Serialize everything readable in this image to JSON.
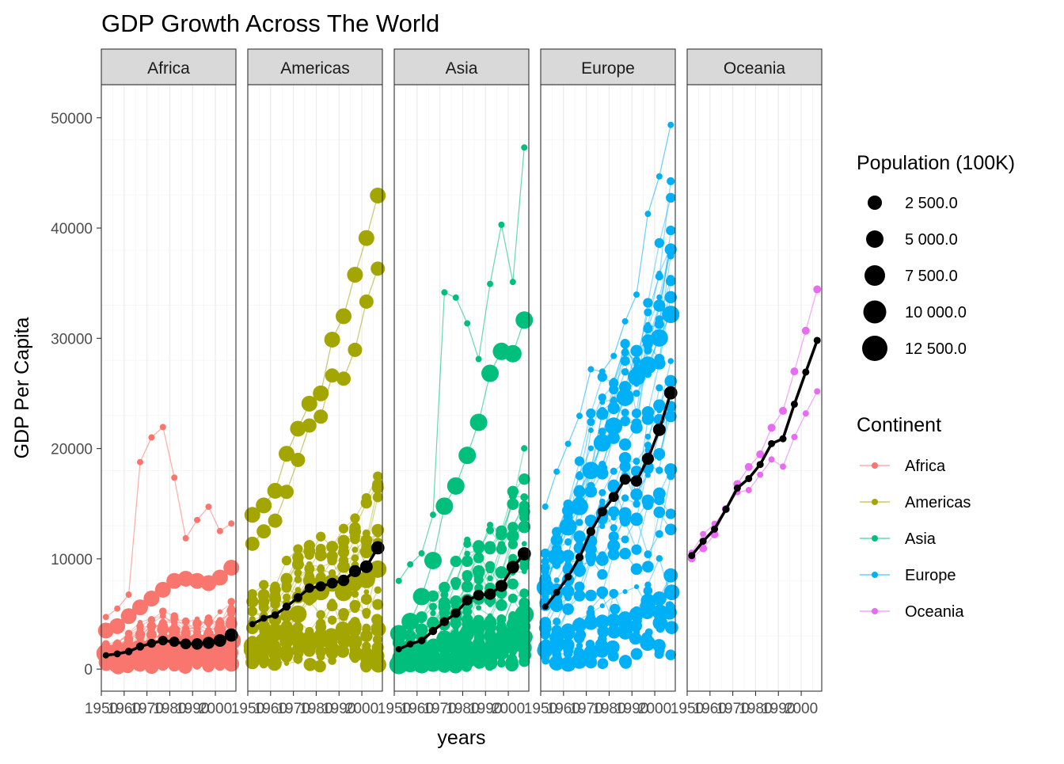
{
  "chart_data": {
    "type": "scatter",
    "title": "GDP Growth Across The World",
    "xlabel": "years",
    "ylabel": "GDP Per Capita",
    "xlim": [
      1950,
      2009
    ],
    "ylim": [
      -2000,
      53000
    ],
    "x_ticks": [
      1950,
      1960,
      1970,
      1980,
      1990,
      2000
    ],
    "y_ticks": [
      0,
      10000,
      20000,
      30000,
      40000,
      50000
    ],
    "years": [
      1952,
      1957,
      1962,
      1967,
      1972,
      1977,
      1982,
      1987,
      1992,
      1997,
      2002,
      2007
    ],
    "grid": true,
    "facets": [
      {
        "name": "Africa",
        "color": "#F8766D",
        "mean_line": [
          1253,
          1385,
          1598,
          2050,
          2340,
          2586,
          2482,
          2283,
          2282,
          2379,
          2599,
          3089
        ],
        "max_line": [
          4725,
          5487,
          6757,
          18773,
          21011,
          21951,
          17364,
          11864,
          13522,
          14723,
          12522,
          13206
        ],
        "big_series": [
          {
            "values": [
              1418,
              1459,
              1693,
              1815,
              1896,
              1972,
              2169,
              2282,
              2368,
              2432,
              2510,
              2582
            ],
            "size": 12
          },
          {
            "values": [
              3500,
              3900,
              4800,
              5600,
              6400,
              7200,
              8000,
              8200,
              8000,
              7800,
              8300,
              9200
            ],
            "size": 10
          }
        ],
        "spread": [
          800,
          900,
          1000,
          1200,
          1300,
          1400,
          1400,
          1300,
          1300,
          1300,
          1400,
          1500
        ]
      },
      {
        "name": "Americas",
        "color": "#A3A500",
        "mean_line": [
          4079,
          4616,
          4902,
          5668,
          6491,
          7352,
          7507,
          7793,
          8045,
          8890,
          9288,
          11003
        ],
        "max_line": [
          13990,
          14847,
          16173,
          19530,
          21806,
          24073,
          25010,
          29884,
          32004,
          35767,
          39097,
          42952
        ],
        "big_series": [
          {
            "values": [
              11367,
              12490,
              13462,
              16077,
              18971,
              22091,
              22898,
              26627,
              26343,
              28955,
              33329,
              36319
            ],
            "size": 9
          },
          {
            "values": [
              2109,
              2487,
              3337,
              3430,
              4986,
              6660,
              7031,
              7807,
              6950,
              7958,
              8131,
              9065
            ],
            "size": 11
          }
        ],
        "spread": [
          1500,
          1700,
          1900,
          2100,
          2400,
          2700,
          2800,
          2900,
          3000,
          3200,
          3300,
          3600
        ]
      },
      {
        "name": "Asia",
        "color": "#00BF7D",
        "mean_line": [
          1809,
          2274,
          2593,
          3457,
          4305,
          5081,
          6233,
          6708,
          6798,
          7548,
          9245,
          10460
        ],
        "max_line": [
          8000,
          9500,
          10500,
          14000,
          34168,
          33693,
          31354,
          28118,
          34932,
          40300,
          35110,
          47307
        ],
        "big_series": [
          {
            "values": [
              400,
              576,
              487,
              612,
              677,
              741,
              962,
              1379,
              1656,
              2289,
              3119,
              4959
            ],
            "size": 12
          },
          {
            "values": [
              3217,
              4317,
              6576,
              9847,
              14778,
              16610,
              19384,
              22375,
              26824,
              28817,
              28604,
              31656
            ],
            "size": 11
          }
        ],
        "spread": [
          1200,
          1400,
          1600,
          1900,
          2300,
          2700,
          3000,
          3200,
          3400,
          3700,
          4000,
          4400
        ]
      },
      {
        "name": "Europe",
        "color": "#00B0F6",
        "mean_line": [
          5661,
          6963,
          8365,
          10143,
          12480,
          14284,
          15618,
          17214,
          17061,
          19077,
          21712,
          25054
        ],
        "max_line": [
          14734,
          17909,
          20431,
          22966,
          27195,
          26982,
          28398,
          31541,
          33965,
          41283,
          44684,
          49357
        ],
        "big_series": [
          {
            "values": [
              7400,
              10187,
              12902,
              14745,
              18016,
              20512,
              22032,
              24639,
              26505,
              27561,
              30035,
              32170
            ],
            "size": 11
          },
          {
            "values": [
              2000,
              2800,
              3500,
              4000,
              4200,
              4300,
              4400,
              4600,
              5000,
              6200,
              6400,
              8500
            ],
            "size": 9
          }
        ],
        "spread": [
          2600,
          3000,
          3400,
          3800,
          4200,
          4500,
          4700,
          4900,
          5000,
          5300,
          5600,
          6000
        ]
      },
      {
        "name": "Oceania",
        "color": "#E76BF3",
        "mean_line": [
          10298,
          11599,
          12696,
          14495,
          16417,
          17283,
          18555,
          20448,
          20894,
          24024,
          26939,
          29810
        ],
        "country_a": [
          10040,
          10950,
          12217,
          14526,
          16789,
          18334,
          19477,
          21889,
          23425,
          26998,
          30688,
          34435
        ],
        "country_b": [
          10557,
          12247,
          13176,
          14463,
          16046,
          16234,
          17632,
          19007,
          18363,
          21050,
          23190,
          25185
        ]
      }
    ],
    "legend": {
      "size_title": "Population (100K)",
      "size_items": [
        {
          "label": "2 500.0",
          "r": 9
        },
        {
          "label": "5 000.0",
          "r": 11
        },
        {
          "label": "7 500.0",
          "r": 13
        },
        {
          "label": "10 000.0",
          "r": 14.5
        },
        {
          "label": "12 500.0",
          "r": 16
        }
      ],
      "color_title": "Continent",
      "color_items": [
        {
          "label": "Africa",
          "color": "#F8766D"
        },
        {
          "label": "Americas",
          "color": "#A3A500"
        },
        {
          "label": "Asia",
          "color": "#00BF7D"
        },
        {
          "label": "Europe",
          "color": "#00B0F6"
        },
        {
          "label": "Oceania",
          "color": "#E76BF3"
        }
      ],
      "placement": "right"
    }
  }
}
